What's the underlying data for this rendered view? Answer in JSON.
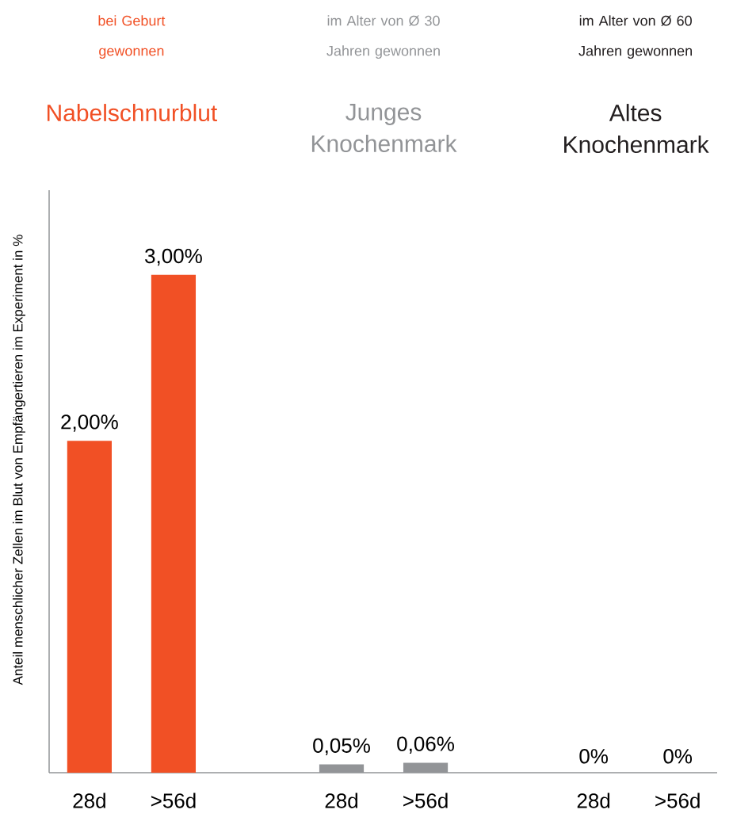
{
  "chart_data": {
    "type": "bar",
    "ylabel": "Anteil menschlicher Zellen im Blut von Empfängertieren im Experiment in %",
    "categories": [
      "28d",
      ">56d",
      null,
      "28d",
      ">56d",
      null,
      "28d",
      ">56d"
    ],
    "values": [
      2,
      3,
      null,
      0.05,
      0.06,
      null,
      0,
      0
    ],
    "value_labels": [
      "2,00%",
      "3,00%",
      null,
      "0,05%",
      "0,06%",
      null,
      "0%",
      "0%"
    ],
    "colors": [
      "#f15025",
      "#f15025",
      "#ffffff",
      "#929497",
      "#929497",
      "#ffffff",
      "#231f20",
      "#231f20"
    ],
    "annotations": [
      "bei Geburt gewonnen",
      "im Alter von Ø 30 Jahren gewonnen",
      "im Alter von Ø 60 Jahren gewonnen",
      "Nabelschnurblut",
      "Junges Knochenmark",
      "Altes Knochenmark"
    ]
  }
}
